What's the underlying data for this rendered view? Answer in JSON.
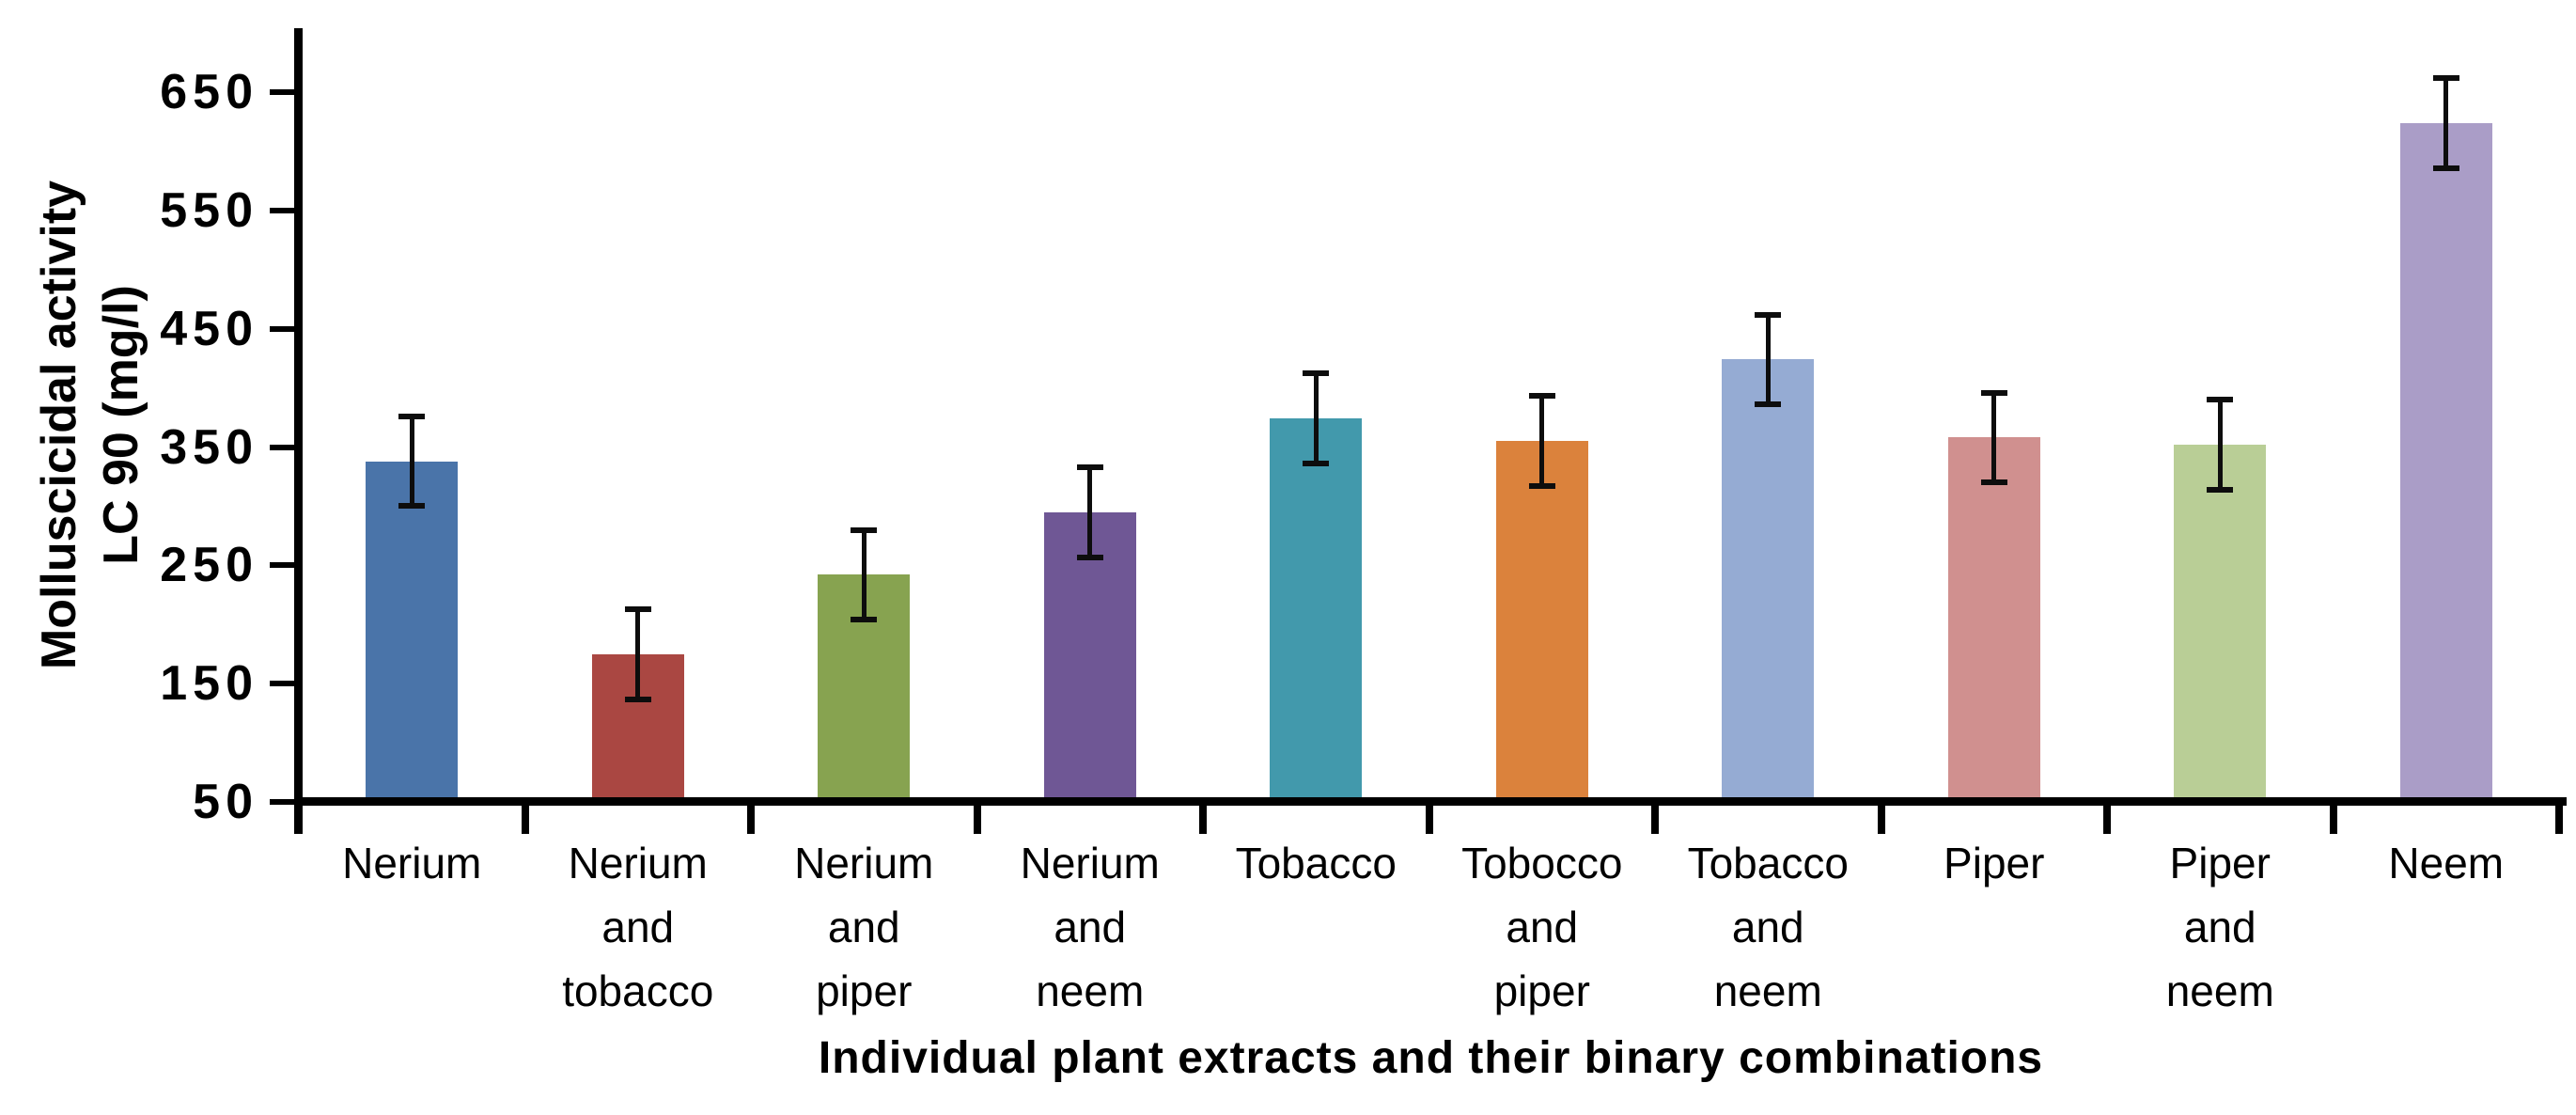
{
  "chart": {
    "y_axis_title_line1": "Molluscicidal activity",
    "y_axis_title_line2": "LC 90 (mg/l)",
    "x_axis_title": "Individual plant extracts and their binary combinations"
  },
  "chart_data": {
    "type": "bar",
    "title": "",
    "xlabel": "Individual plant extracts and their binary combinations",
    "ylabel": "Molluscicidal activity LC 90 (mg/l)",
    "ylim": [
      50,
      650
    ],
    "yticks": [
      650,
      550,
      450,
      350,
      250,
      150,
      50
    ],
    "grid": false,
    "legend": false,
    "categories": [
      "Nerium",
      "Nerium and tobacco",
      "Nerium and piper",
      "Nerium and neem",
      "Tobacco",
      "Tobocco and piper",
      "Tobacco and neem",
      "Piper",
      "Piper and neem",
      "Neem"
    ],
    "category_label_lines": [
      [
        "Nerium"
      ],
      [
        "Nerium",
        "and",
        "tobacco"
      ],
      [
        "Nerium",
        "and",
        "piper"
      ],
      [
        "Nerium",
        "and",
        "neem"
      ],
      [
        "Tobacco"
      ],
      [
        "Tobocco",
        "and",
        "piper"
      ],
      [
        "Tobacco",
        "and",
        "neem"
      ],
      [
        "Piper"
      ],
      [
        "Piper",
        "and",
        "neem"
      ],
      [
        "Neem"
      ]
    ],
    "values": [
      338,
      175,
      242,
      295,
      374,
      355,
      424,
      358,
      352,
      624
    ],
    "errors": [
      38,
      38,
      38,
      38,
      38,
      38,
      38,
      38,
      38,
      38
    ],
    "bar_colors": [
      "#4A74A9",
      "#AA4742",
      "#87A350",
      "#6F5795",
      "#4299AC",
      "#DB823C",
      "#95ABD3",
      "#D0908F",
      "#B9CE96",
      "#AA9DC7"
    ],
    "error_bar_color": "#0d0d0d",
    "axis_color": "#000000"
  }
}
